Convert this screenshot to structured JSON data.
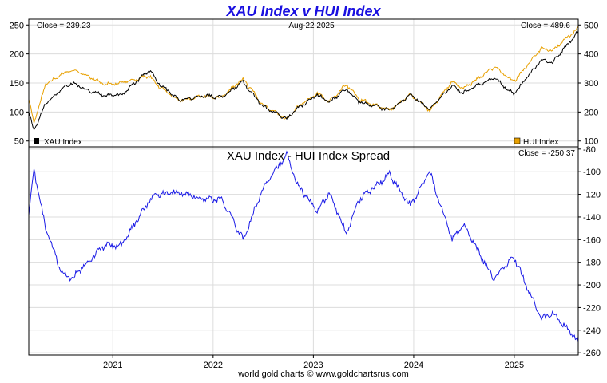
{
  "title": "XAU Index v HUI Index",
  "footer": "world gold charts © www.goldchartsrus.com",
  "colors": {
    "title": "#1a10e0",
    "xau": "#000000",
    "hui": "#e8a000",
    "spread": "#1a1ae6",
    "grid": "#dcdcdc",
    "axis": "#000000"
  },
  "chart_data": [
    {
      "type": "line",
      "title": "",
      "date": "Aug-22  2025",
      "xlabel": "",
      "ylabel": "",
      "x_ticks": [
        "2021",
        "2022",
        "2023",
        "2024",
        "2025"
      ],
      "x_range": [
        "2020-03-01",
        "2025-08-22"
      ],
      "ylim_left": [
        40,
        260
      ],
      "yticks_left": [
        50,
        100,
        150,
        200,
        250
      ],
      "ylim_right": [
        80,
        520
      ],
      "yticks_right": [
        100,
        200,
        300,
        400,
        500
      ],
      "grid": true,
      "legend": [
        "bottom-left: XAU Index",
        "bottom-right: HUI Index"
      ],
      "series": [
        {
          "name": "XAU Index",
          "axis": "left",
          "close_label": "Close = 239.23",
          "x": [
            "2020-03-01",
            "2020-03-20",
            "2020-05-01",
            "2020-07-01",
            "2020-08-05",
            "2020-10-01",
            "2020-12-01",
            "2021-02-01",
            "2021-05-15",
            "2021-06-15",
            "2021-09-01",
            "2021-12-01",
            "2022-02-01",
            "2022-04-20",
            "2022-07-01",
            "2022-09-26",
            "2022-11-01",
            "2023-01-15",
            "2023-02-28",
            "2023-05-01",
            "2023-06-15",
            "2023-10-05",
            "2023-12-20",
            "2024-02-28",
            "2024-05-20",
            "2024-06-30",
            "2024-10-20",
            "2024-12-30",
            "2025-04-10",
            "2025-05-20",
            "2025-08-22"
          ],
          "values": [
            100,
            68,
            115,
            140,
            150,
            138,
            128,
            130,
            172,
            150,
            120,
            128,
            125,
            152,
            110,
            88,
            105,
            130,
            117,
            140,
            118,
            103,
            130,
            105,
            145,
            133,
            160,
            130,
            190,
            185,
            239
          ]
        },
        {
          "name": "HUI Index",
          "axis": "right",
          "close_label": "Close = 489.6",
          "x": [
            "2020-03-01",
            "2020-03-20",
            "2020-05-01",
            "2020-07-01",
            "2020-08-05",
            "2020-10-01",
            "2020-12-01",
            "2021-02-01",
            "2021-05-15",
            "2021-06-15",
            "2021-09-01",
            "2021-12-01",
            "2022-02-01",
            "2022-04-20",
            "2022-07-01",
            "2022-09-26",
            "2022-11-01",
            "2023-01-15",
            "2023-02-28",
            "2023-05-01",
            "2023-06-15",
            "2023-10-05",
            "2023-12-20",
            "2024-02-28",
            "2024-05-20",
            "2024-06-30",
            "2024-10-20",
            "2024-12-30",
            "2025-04-10",
            "2025-05-20",
            "2025-08-22"
          ],
          "values": [
            240,
            165,
            295,
            330,
            345,
            325,
            295,
            300,
            325,
            290,
            240,
            255,
            250,
            315,
            225,
            175,
            215,
            265,
            235,
            295,
            245,
            205,
            260,
            205,
            305,
            280,
            355,
            305,
            420,
            410,
            490
          ]
        }
      ]
    },
    {
      "type": "line",
      "title": "XAU Index  -  HUI Index Spread",
      "close_label": "Close = -250.37",
      "x_ticks": [
        "2021",
        "2022",
        "2023",
        "2024",
        "2025"
      ],
      "x_range": [
        "2020-03-01",
        "2025-08-22"
      ],
      "ylim": [
        -262,
        -78
      ],
      "yticks": [
        -80,
        -100,
        -120,
        -140,
        -160,
        -180,
        -200,
        -220,
        -240,
        -260
      ],
      "grid": true,
      "series": [
        {
          "name": "",
          "x": [
            "2020-03-01",
            "2020-03-20",
            "2020-05-01",
            "2020-07-01",
            "2020-08-05",
            "2020-10-01",
            "2020-12-01",
            "2021-02-01",
            "2021-05-15",
            "2021-06-15",
            "2021-09-01",
            "2021-12-01",
            "2022-02-01",
            "2022-04-20",
            "2022-07-01",
            "2022-09-26",
            "2022-11-01",
            "2023-01-15",
            "2023-02-28",
            "2023-05-01",
            "2023-06-15",
            "2023-10-05",
            "2023-12-20",
            "2024-02-28",
            "2024-05-20",
            "2024-06-30",
            "2024-10-20",
            "2024-12-30",
            "2025-04-10",
            "2025-05-20",
            "2025-08-22"
          ],
          "values": [
            -140,
            -97,
            -150,
            -190,
            -195,
            -180,
            -165,
            -165,
            -125,
            -120,
            -118,
            -125,
            -124,
            -160,
            -115,
            -85,
            -110,
            -135,
            -118,
            -155,
            -125,
            -102,
            -130,
            -100,
            -160,
            -147,
            -195,
            -175,
            -230,
            -225,
            -250
          ]
        }
      ]
    }
  ]
}
